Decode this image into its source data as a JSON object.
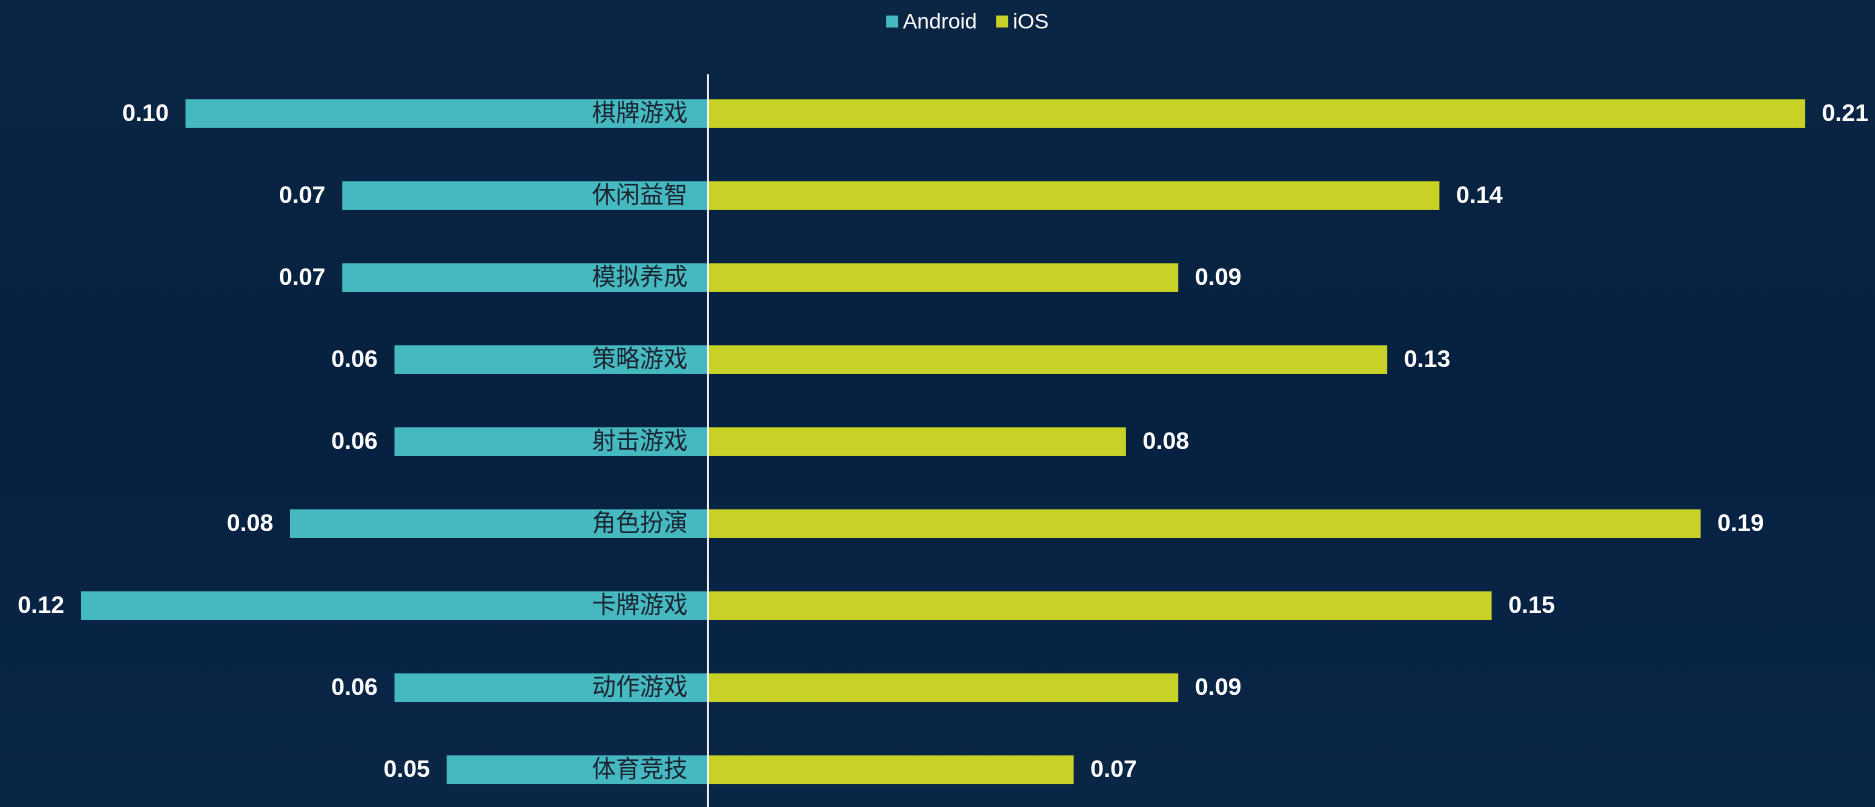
{
  "chart_data": {
    "type": "butterfly-bar",
    "categories": [
      "棋牌游戏",
      "休闲益智",
      "模拟养成",
      "策略游戏",
      "射击游戏",
      "角色扮演",
      "卡牌游戏",
      "动作游戏",
      "体育竞技"
    ],
    "series": [
      {
        "name": "Android",
        "color": "#45b8c0",
        "side": "left",
        "values": [
          0.1,
          0.07,
          0.07,
          0.06,
          0.06,
          0.08,
          0.12,
          0.06,
          0.05
        ],
        "value_labels": [
          "0.10",
          "0.07",
          "0.07",
          "0.06",
          "0.06",
          "0.08",
          "0.12",
          "0.06",
          "0.05"
        ]
      },
      {
        "name": "iOS",
        "color": "#c8d126",
        "side": "right",
        "values": [
          0.21,
          0.14,
          0.09,
          0.13,
          0.08,
          0.19,
          0.15,
          0.09,
          0.07
        ],
        "value_labels": [
          "0.21",
          "0.14",
          "0.09",
          "0.13",
          "0.08",
          "0.19",
          "0.15",
          "0.09",
          "0.07"
        ]
      }
    ],
    "legend": "top"
  }
}
